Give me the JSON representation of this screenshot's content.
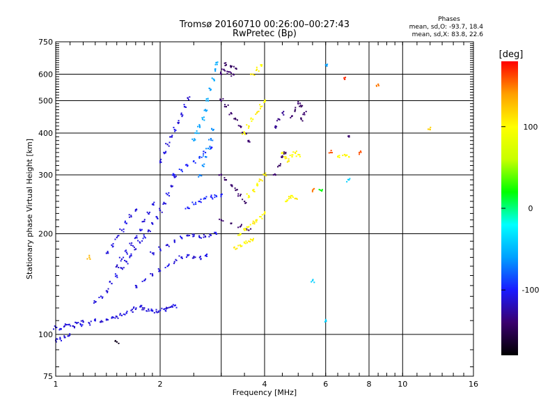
{
  "chart_data": {
    "type": "scatter",
    "title": "Tromsø 20160710 00:26:00–00:27:43",
    "subtitle": "RwPretec (Bp)",
    "xlabel": "Frequency [MHz]",
    "ylabel": "Stationary phase Virtual Height [km]",
    "x_scale": "log",
    "y_scale": "log",
    "xlim": [
      1,
      16
    ],
    "ylim": [
      75,
      750
    ],
    "x_ticks": [
      "1",
      "2",
      "4",
      "6",
      "8",
      "10",
      "16"
    ],
    "x_tick_values": [
      1,
      2,
      4,
      6,
      8,
      10,
      16
    ],
    "x_grid_values": [
      1,
      2,
      3,
      4,
      6,
      8,
      10,
      16
    ],
    "y_ticks": [
      "75",
      "100",
      "200",
      "300",
      "400",
      "500",
      "600",
      "750"
    ],
    "y_tick_values": [
      75,
      100,
      200,
      300,
      400,
      500,
      600,
      750
    ],
    "y_grid_values": [
      100,
      200,
      300,
      400,
      500,
      600
    ],
    "grid": true,
    "info_title": "Phases",
    "info_lines": [
      "mean, sd,O: -93.7, 18.4",
      "mean, sd,X: 83.8, 22.6"
    ],
    "colorbar": {
      "label": "[deg]",
      "range": [
        -180,
        180
      ],
      "ticks": [
        "100",
        "0",
        "-100"
      ],
      "tick_values": [
        100,
        0,
        -100
      ],
      "colors": [
        "#000000",
        "#3a006e",
        "#1a1aff",
        "#00a0ff",
        "#00ffff",
        "#00ff00",
        "#c8ff00",
        "#ffff00",
        "#ffa000",
        "#ff0000"
      ]
    },
    "series": [
      {
        "description_only": false,
        "points": [
          [
            1.0,
            105,
            -110
          ],
          [
            1.03,
            104,
            -105
          ],
          [
            1.06,
            106,
            -112
          ],
          [
            1.09,
            107,
            -108
          ],
          [
            1.12,
            106,
            -115
          ],
          [
            1.15,
            108,
            -110
          ],
          [
            1.18,
            107,
            -105
          ],
          [
            1.2,
            109,
            -112
          ],
          [
            1.25,
            108,
            -110
          ],
          [
            1.3,
            110,
            -108
          ],
          [
            1.35,
            109,
            -115
          ],
          [
            1.4,
            111,
            -110
          ],
          [
            1.45,
            112,
            -108
          ],
          [
            1.5,
            113,
            -112
          ],
          [
            1.55,
            114,
            -110
          ],
          [
            1.6,
            116,
            -105
          ],
          [
            1.65,
            118,
            -112
          ],
          [
            1.7,
            119,
            -110
          ],
          [
            1.75,
            121,
            -108
          ],
          [
            1.8,
            120,
            -115
          ],
          [
            1.85,
            119,
            -110
          ],
          [
            1.9,
            118,
            -105
          ],
          [
            1.95,
            117,
            -112
          ],
          [
            2.0,
            118,
            -110
          ],
          [
            2.05,
            119,
            -108
          ],
          [
            2.1,
            120,
            -115
          ],
          [
            2.15,
            121,
            -110
          ],
          [
            2.2,
            122,
            -105
          ],
          [
            1.0,
            96,
            -110
          ],
          [
            1.03,
            97,
            -108
          ],
          [
            1.06,
            98,
            -112
          ],
          [
            1.09,
            99,
            -110
          ],
          [
            1.3,
            125,
            -110
          ],
          [
            1.35,
            130,
            -108
          ],
          [
            1.4,
            135,
            -112
          ],
          [
            1.45,
            142,
            -110
          ],
          [
            1.5,
            150,
            -105
          ],
          [
            1.55,
            158,
            -112
          ],
          [
            1.6,
            165,
            -110
          ],
          [
            1.65,
            172,
            -108
          ],
          [
            1.7,
            180,
            -115
          ],
          [
            1.75,
            188,
            -110
          ],
          [
            1.8,
            196,
            -105
          ],
          [
            1.85,
            205,
            -112
          ],
          [
            1.9,
            215,
            -110
          ],
          [
            1.95,
            225,
            -108
          ],
          [
            2.0,
            235,
            -115
          ],
          [
            2.05,
            248,
            -110
          ],
          [
            2.1,
            262,
            -105
          ],
          [
            2.15,
            278,
            -112
          ],
          [
            2.2,
            295,
            -110
          ],
          [
            1.5,
            160,
            -115
          ],
          [
            1.55,
            168,
            -110
          ],
          [
            1.6,
            176,
            -108
          ],
          [
            1.65,
            185,
            -112
          ],
          [
            1.7,
            195,
            -110
          ],
          [
            1.75,
            206,
            -105
          ],
          [
            1.8,
            218,
            -112
          ],
          [
            1.85,
            230,
            -110
          ],
          [
            1.9,
            245,
            -108
          ],
          [
            1.4,
            175,
            -110
          ],
          [
            1.45,
            185,
            -108
          ],
          [
            1.5,
            195,
            -112
          ],
          [
            1.55,
            205,
            -110
          ],
          [
            1.6,
            215,
            -105
          ],
          [
            1.65,
            225,
            -112
          ],
          [
            1.7,
            236,
            -110
          ],
          [
            1.7,
            140,
            -110
          ],
          [
            1.8,
            145,
            -108
          ],
          [
            1.9,
            150,
            -112
          ],
          [
            2.0,
            155,
            -110
          ],
          [
            2.1,
            160,
            -105
          ],
          [
            2.2,
            165,
            -112
          ],
          [
            2.3,
            170,
            -110
          ],
          [
            2.4,
            172,
            -108
          ],
          [
            2.5,
            171,
            -115
          ],
          [
            2.6,
            170,
            -110
          ],
          [
            2.7,
            172,
            -105
          ],
          [
            1.9,
            175,
            -110
          ],
          [
            2.0,
            180,
            -108
          ],
          [
            2.1,
            185,
            -112
          ],
          [
            2.2,
            190,
            -110
          ],
          [
            2.3,
            195,
            -105
          ],
          [
            2.4,
            198,
            -112
          ],
          [
            2.5,
            197,
            -110
          ],
          [
            2.6,
            195,
            -108
          ],
          [
            2.7,
            196,
            -115
          ],
          [
            2.8,
            198,
            -110
          ],
          [
            2.9,
            200,
            -105
          ],
          [
            2.0,
            330,
            -110
          ],
          [
            2.05,
            350,
            -108
          ],
          [
            2.1,
            370,
            -112
          ],
          [
            2.15,
            390,
            -110
          ],
          [
            2.2,
            410,
            -105
          ],
          [
            2.25,
            430,
            -112
          ],
          [
            2.3,
            455,
            -110
          ],
          [
            2.35,
            480,
            -108
          ],
          [
            2.4,
            510,
            -115
          ],
          [
            2.2,
            300,
            -100
          ],
          [
            2.3,
            310,
            -95
          ],
          [
            2.4,
            320,
            -100
          ],
          [
            2.5,
            330,
            -95
          ],
          [
            2.6,
            340,
            -90
          ],
          [
            2.7,
            350,
            -95
          ],
          [
            2.8,
            360,
            -100
          ],
          [
            2.4,
            240,
            -100
          ],
          [
            2.5,
            245,
            -95
          ],
          [
            2.6,
            250,
            -100
          ],
          [
            2.7,
            255,
            -95
          ],
          [
            2.8,
            258,
            -100
          ],
          [
            2.9,
            260,
            -95
          ],
          [
            3.0,
            262,
            -100
          ],
          [
            2.5,
            380,
            -60
          ],
          [
            2.55,
            400,
            -55
          ],
          [
            2.6,
            420,
            -60
          ],
          [
            2.65,
            440,
            -55
          ],
          [
            2.7,
            470,
            -60
          ],
          [
            2.75,
            500,
            -55
          ],
          [
            2.8,
            540,
            -60
          ],
          [
            2.85,
            580,
            -55
          ],
          [
            2.88,
            620,
            -60
          ],
          [
            2.9,
            650,
            -55
          ],
          [
            2.6,
            300,
            -70
          ],
          [
            2.65,
            320,
            -65
          ],
          [
            2.7,
            340,
            -70
          ],
          [
            2.75,
            360,
            -65
          ],
          [
            2.8,
            385,
            -70
          ],
          [
            2.85,
            410,
            -65
          ],
          [
            3.0,
            600,
            -140
          ],
          [
            3.05,
            620,
            -140
          ],
          [
            3.1,
            640,
            -145
          ],
          [
            3.15,
            610,
            -140
          ],
          [
            3.2,
            630,
            -145
          ],
          [
            3.25,
            600,
            -140
          ],
          [
            3.3,
            625,
            -145
          ],
          [
            3.0,
            500,
            -140
          ],
          [
            3.1,
            480,
            -145
          ],
          [
            3.2,
            460,
            -140
          ],
          [
            3.3,
            440,
            -145
          ],
          [
            3.4,
            420,
            -140
          ],
          [
            3.5,
            400,
            -145
          ],
          [
            3.6,
            380,
            -140
          ],
          [
            3.0,
            300,
            -140
          ],
          [
            3.1,
            290,
            -145
          ],
          [
            3.2,
            280,
            -140
          ],
          [
            3.3,
            270,
            -145
          ],
          [
            3.4,
            260,
            -140
          ],
          [
            3.5,
            250,
            -145
          ],
          [
            3.0,
            220,
            -140
          ],
          [
            3.2,
            215,
            -145
          ],
          [
            3.4,
            210,
            -140
          ],
          [
            3.6,
            205,
            -145
          ],
          [
            3.4,
            200,
            100
          ],
          [
            3.5,
            205,
            105
          ],
          [
            3.6,
            210,
            100
          ],
          [
            3.7,
            215,
            110
          ],
          [
            3.8,
            220,
            105
          ],
          [
            3.9,
            225,
            100
          ],
          [
            4.0,
            230,
            105
          ],
          [
            3.3,
            180,
            110
          ],
          [
            3.4,
            185,
            105
          ],
          [
            3.5,
            188,
            100
          ],
          [
            3.6,
            190,
            110
          ],
          [
            3.7,
            192,
            105
          ],
          [
            3.6,
            260,
            100
          ],
          [
            3.7,
            270,
            105
          ],
          [
            3.8,
            280,
            100
          ],
          [
            3.9,
            290,
            110
          ],
          [
            4.0,
            300,
            105
          ],
          [
            3.5,
            400,
            100
          ],
          [
            3.6,
            420,
            105
          ],
          [
            3.7,
            440,
            100
          ],
          [
            3.8,
            460,
            110
          ],
          [
            3.9,
            480,
            105
          ],
          [
            4.0,
            500,
            100
          ],
          [
            3.7,
            600,
            110
          ],
          [
            3.8,
            620,
            105
          ],
          [
            3.9,
            640,
            100
          ],
          [
            4.5,
            350,
            100
          ],
          [
            4.6,
            340,
            105
          ],
          [
            4.7,
            330,
            110
          ],
          [
            4.8,
            340,
            100
          ],
          [
            4.9,
            350,
            105
          ],
          [
            5.0,
            345,
            100
          ],
          [
            4.6,
            250,
            100
          ],
          [
            4.7,
            255,
            105
          ],
          [
            4.8,
            260,
            100
          ],
          [
            4.9,
            255,
            110
          ],
          [
            4.3,
            300,
            -140
          ],
          [
            4.4,
            320,
            -145
          ],
          [
            4.5,
            340,
            -140
          ],
          [
            4.6,
            350,
            -145
          ],
          [
            4.8,
            450,
            -140
          ],
          [
            4.9,
            470,
            -145
          ],
          [
            5.0,
            490,
            -140
          ],
          [
            5.1,
            480,
            -145
          ],
          [
            5.2,
            460,
            -140
          ],
          [
            5.1,
            440,
            -145
          ],
          [
            4.3,
            420,
            -130
          ],
          [
            4.4,
            440,
            -135
          ],
          [
            4.5,
            460,
            -130
          ],
          [
            6.5,
            340,
            100
          ],
          [
            6.8,
            345,
            105
          ],
          [
            7.0,
            340,
            100
          ],
          [
            6.2,
            350,
            160
          ],
          [
            7.0,
            390,
            -140
          ],
          [
            7.5,
            350,
            160
          ],
          [
            8.5,
            560,
            150
          ],
          [
            6.8,
            580,
            170
          ],
          [
            6.0,
            640,
            -60
          ],
          [
            5.5,
            270,
            150
          ],
          [
            6.0,
            110,
            -40
          ],
          [
            5.5,
            145,
            -40
          ],
          [
            1.5,
            95,
            -170
          ],
          [
            1.25,
            170,
            130
          ],
          [
            12,
            410,
            120
          ],
          [
            7.0,
            290,
            -40
          ],
          [
            5.8,
            270,
            20
          ]
        ]
      }
    ]
  }
}
